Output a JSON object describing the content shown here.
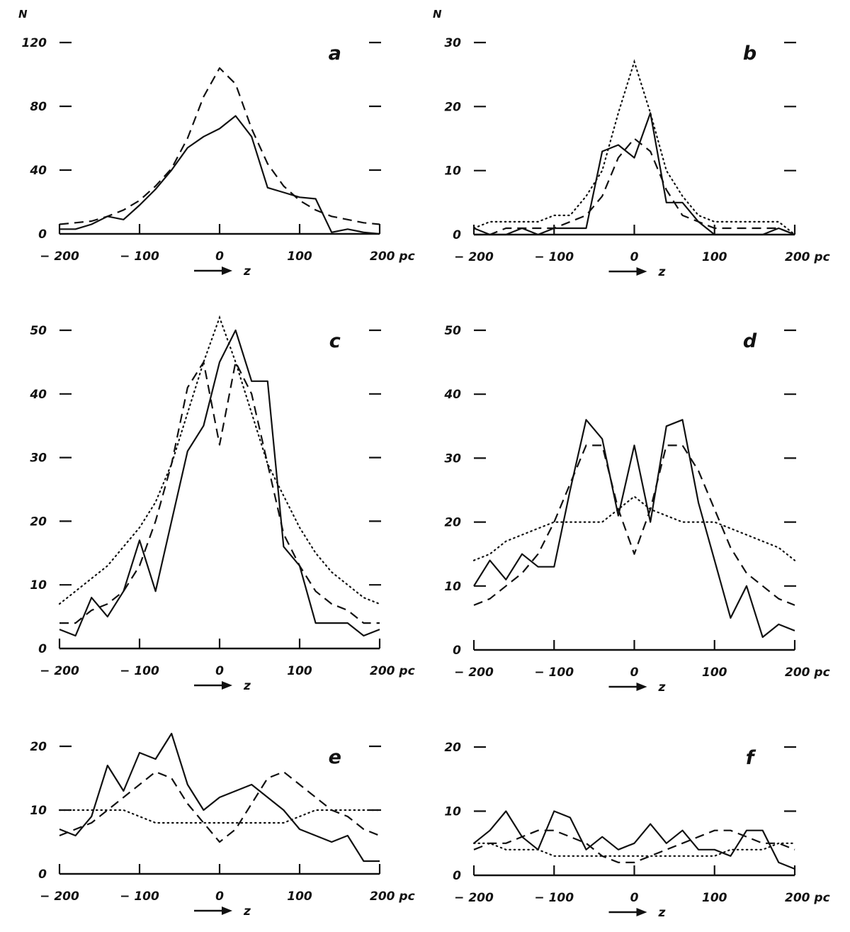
{
  "chart_data": [
    {
      "type": "line",
      "panel": "a",
      "ylabel": "N",
      "xlabel": "z",
      "x_unit": "pc",
      "xlim": [
        -200,
        200
      ],
      "ylim": [
        0,
        120
      ],
      "x_ticks": [
        -200,
        -100,
        0,
        100,
        200
      ],
      "x_tick_labels": [
        "− 200",
        "− 100",
        "0",
        "100",
        "200 pc"
      ],
      "y_ticks": [
        0,
        40,
        80,
        120
      ],
      "y_tick_labels": [
        "0",
        "40",
        "80",
        "120"
      ],
      "series": [
        {
          "style": "solid",
          "x": [
            -200,
            -180,
            -160,
            -140,
            -120,
            -100,
            -80,
            -60,
            -40,
            -20,
            0,
            20,
            40,
            60,
            80,
            100,
            120,
            140,
            160,
            180,
            200
          ],
          "y": [
            3,
            3,
            6,
            11,
            9,
            18,
            28,
            40,
            54,
            61,
            66,
            74,
            61,
            29,
            26,
            23,
            22,
            1,
            3,
            1,
            0
          ]
        },
        {
          "style": "dashed",
          "x": [
            -200,
            -180,
            -160,
            -140,
            -120,
            -100,
            -80,
            -60,
            -40,
            -20,
            0,
            20,
            40,
            60,
            80,
            100,
            120,
            140,
            160,
            180,
            200
          ],
          "y": [
            6,
            7,
            8,
            11,
            15,
            21,
            30,
            41,
            60,
            86,
            104,
            94,
            66,
            44,
            30,
            21,
            15,
            11,
            9,
            7,
            6
          ]
        }
      ]
    },
    {
      "type": "line",
      "panel": "b",
      "ylabel": "N",
      "xlabel": "z",
      "x_unit": "pc",
      "xlim": [
        -200,
        200
      ],
      "ylim": [
        0,
        30
      ],
      "x_ticks": [
        -200,
        -100,
        0,
        100,
        200
      ],
      "x_tick_labels": [
        "− 200",
        "− 100",
        "0",
        "100",
        "200 pc"
      ],
      "y_ticks": [
        0,
        10,
        20,
        30
      ],
      "y_tick_labels": [
        "0",
        "10",
        "20",
        "30"
      ],
      "series": [
        {
          "style": "solid",
          "x": [
            -200,
            -180,
            -160,
            -140,
            -120,
            -100,
            -80,
            -60,
            -40,
            -20,
            0,
            20,
            40,
            60,
            80,
            100,
            120,
            140,
            160,
            180,
            200
          ],
          "y": [
            1,
            0,
            0,
            1,
            0,
            1,
            1,
            1,
            13,
            14,
            12,
            19,
            5,
            5,
            2,
            0,
            0,
            0,
            0,
            1,
            0
          ]
        },
        {
          "style": "dashed",
          "x": [
            -200,
            -180,
            -160,
            -140,
            -120,
            -100,
            -80,
            -60,
            -40,
            -20,
            0,
            20,
            40,
            60,
            80,
            100,
            120,
            140,
            160,
            180,
            200
          ],
          "y": [
            0,
            0,
            1,
            1,
            1,
            1,
            2,
            3,
            6,
            12,
            15,
            13,
            7,
            3,
            2,
            1,
            1,
            1,
            1,
            1,
            0
          ]
        },
        {
          "style": "dotted",
          "x": [
            -200,
            -180,
            -160,
            -140,
            -120,
            -100,
            -80,
            -60,
            -40,
            -20,
            0,
            20,
            40,
            60,
            80,
            100,
            120,
            140,
            160,
            180,
            200
          ],
          "y": [
            1,
            2,
            2,
            2,
            2,
            3,
            3,
            6,
            10,
            19,
            27,
            19,
            10,
            6,
            3,
            2,
            2,
            2,
            2,
            2,
            0
          ]
        }
      ]
    },
    {
      "type": "line",
      "panel": "c",
      "xlabel": "z",
      "x_unit": "pc",
      "xlim": [
        -200,
        200
      ],
      "ylim": [
        0,
        50
      ],
      "x_ticks": [
        -200,
        -100,
        0,
        100,
        200
      ],
      "x_tick_labels": [
        "− 200",
        "− 100",
        "0",
        "100",
        "200 pc"
      ],
      "y_ticks": [
        0,
        10,
        20,
        30,
        40,
        50
      ],
      "y_tick_labels": [
        "0",
        "10",
        "20",
        "30",
        "40",
        "50"
      ],
      "series": [
        {
          "style": "solid",
          "x": [
            -200,
            -180,
            -160,
            -140,
            -120,
            -100,
            -80,
            -60,
            -40,
            -20,
            0,
            20,
            40,
            60,
            80,
            100,
            120,
            140,
            160,
            180,
            200
          ],
          "y": [
            3,
            2,
            8,
            5,
            9,
            17,
            9,
            20,
            31,
            35,
            45,
            50,
            42,
            42,
            16,
            13,
            4,
            4,
            4,
            2,
            3
          ]
        },
        {
          "style": "dashed",
          "x": [
            -200,
            -180,
            -160,
            -140,
            -120,
            -100,
            -80,
            -60,
            -40,
            -20,
            0,
            20,
            40,
            60,
            80,
            100,
            120,
            140,
            160,
            180,
            200
          ],
          "y": [
            4,
            4,
            6,
            7,
            9,
            13,
            20,
            29,
            41,
            45,
            32,
            45,
            40,
            29,
            18,
            13,
            9,
            7,
            6,
            4,
            4
          ]
        },
        {
          "style": "dotted",
          "x": [
            -200,
            -180,
            -160,
            -140,
            -120,
            -100,
            -80,
            -60,
            -40,
            -20,
            0,
            20,
            40,
            60,
            80,
            100,
            120,
            140,
            160,
            180,
            200
          ],
          "y": [
            7,
            9,
            11,
            13,
            16,
            19,
            23,
            29,
            37,
            45,
            52,
            45,
            37,
            29,
            24,
            19,
            15,
            12,
            10,
            8,
            7
          ]
        }
      ]
    },
    {
      "type": "line",
      "panel": "d",
      "xlabel": "z",
      "x_unit": "pc",
      "xlim": [
        -200,
        200
      ],
      "ylim": [
        0,
        50
      ],
      "x_ticks": [
        -200,
        -100,
        0,
        100,
        200
      ],
      "x_tick_labels": [
        "− 200",
        "− 100",
        "0",
        "100",
        "200 pc"
      ],
      "y_ticks": [
        0,
        10,
        20,
        30,
        40,
        50
      ],
      "y_tick_labels": [
        "0",
        "10",
        "20",
        "30",
        "40",
        "50"
      ],
      "series": [
        {
          "style": "solid",
          "x": [
            -200,
            -180,
            -160,
            -140,
            -120,
            -100,
            -80,
            -60,
            -40,
            -20,
            0,
            20,
            40,
            60,
            80,
            100,
            120,
            140,
            160,
            180,
            200
          ],
          "y": [
            10,
            14,
            11,
            15,
            13,
            13,
            25,
            36,
            33,
            21,
            32,
            20,
            35,
            36,
            23,
            14,
            5,
            10,
            2,
            4,
            3
          ]
        },
        {
          "style": "dashed",
          "x": [
            -200,
            -180,
            -160,
            -140,
            -120,
            -100,
            -80,
            -60,
            -40,
            -20,
            0,
            20,
            40,
            60,
            80,
            100,
            120,
            140,
            160,
            180,
            200
          ],
          "y": [
            7,
            8,
            10,
            12,
            15,
            20,
            26,
            32,
            32,
            22,
            15,
            22,
            32,
            32,
            28,
            22,
            16,
            12,
            10,
            8,
            7
          ]
        },
        {
          "style": "dotted",
          "x": [
            -200,
            -180,
            -160,
            -140,
            -120,
            -100,
            -80,
            -60,
            -40,
            -20,
            0,
            20,
            40,
            60,
            80,
            100,
            120,
            140,
            160,
            180,
            200
          ],
          "y": [
            14,
            15,
            17,
            18,
            19,
            20,
            20,
            20,
            20,
            22,
            24,
            22,
            21,
            20,
            20,
            20,
            19,
            18,
            17,
            16,
            14
          ]
        }
      ]
    },
    {
      "type": "line",
      "panel": "e",
      "xlabel": "z",
      "x_unit": "pc",
      "xlim": [
        -200,
        200
      ],
      "ylim": [
        0,
        20
      ],
      "x_ticks": [
        -200,
        -100,
        0,
        100,
        200
      ],
      "x_tick_labels": [
        "− 200",
        "− 100",
        "0",
        "100",
        "200 pc"
      ],
      "y_ticks": [
        0,
        10,
        20
      ],
      "y_tick_labels": [
        "0",
        "10",
        "20"
      ],
      "series": [
        {
          "style": "solid",
          "x": [
            -200,
            -180,
            -160,
            -140,
            -120,
            -100,
            -80,
            -60,
            -40,
            -20,
            0,
            20,
            40,
            60,
            80,
            100,
            120,
            140,
            160,
            180,
            200
          ],
          "y": [
            7,
            6,
            9,
            17,
            13,
            19,
            18,
            22,
            14,
            10,
            12,
            13,
            14,
            12,
            10,
            7,
            6,
            5,
            6,
            2,
            2
          ]
        },
        {
          "style": "dashed",
          "x": [
            -200,
            -180,
            -160,
            -140,
            -120,
            -100,
            -80,
            -60,
            -40,
            -20,
            0,
            20,
            40,
            60,
            80,
            100,
            120,
            140,
            160,
            180,
            200
          ],
          "y": [
            6,
            7,
            8,
            10,
            12,
            14,
            16,
            15,
            11,
            8,
            5,
            7,
            11,
            15,
            16,
            14,
            12,
            10,
            9,
            7,
            6
          ]
        },
        {
          "style": "dotted",
          "x": [
            -200,
            -180,
            -160,
            -140,
            -120,
            -100,
            -80,
            -60,
            -40,
            -20,
            0,
            20,
            40,
            60,
            80,
            100,
            120,
            140,
            160,
            180,
            200
          ],
          "y": [
            10,
            10,
            10,
            10,
            10,
            9,
            8,
            8,
            8,
            8,
            8,
            8,
            8,
            8,
            8,
            9,
            10,
            10,
            10,
            10,
            10
          ]
        }
      ]
    },
    {
      "type": "line",
      "panel": "f",
      "xlabel": "z",
      "x_unit": "pc",
      "xlim": [
        -200,
        200
      ],
      "ylim": [
        0,
        20
      ],
      "x_ticks": [
        -200,
        -100,
        0,
        100,
        200
      ],
      "x_tick_labels": [
        "− 200",
        "− 100",
        "0",
        "100",
        "200 pc"
      ],
      "y_ticks": [
        0,
        10,
        20
      ],
      "y_tick_labels": [
        "0",
        "10",
        "20"
      ],
      "series": [
        {
          "style": "solid",
          "x": [
            -200,
            -180,
            -160,
            -140,
            -120,
            -100,
            -80,
            -60,
            -40,
            -20,
            0,
            20,
            40,
            60,
            80,
            100,
            120,
            140,
            160,
            180,
            200
          ],
          "y": [
            5,
            7,
            10,
            6,
            4,
            10,
            9,
            4,
            6,
            4,
            5,
            8,
            5,
            7,
            4,
            4,
            3,
            7,
            7,
            2,
            1
          ]
        },
        {
          "style": "dashed",
          "x": [
            -200,
            -180,
            -160,
            -140,
            -120,
            -100,
            -80,
            -60,
            -40,
            -20,
            0,
            20,
            40,
            60,
            80,
            100,
            120,
            140,
            160,
            180,
            200
          ],
          "y": [
            4,
            5,
            5,
            6,
            7,
            7,
            6,
            5,
            3,
            2,
            2,
            3,
            4,
            5,
            6,
            7,
            7,
            6,
            5,
            5,
            4
          ]
        },
        {
          "style": "dotted",
          "x": [
            -200,
            -180,
            -160,
            -140,
            -120,
            -100,
            -80,
            -60,
            -40,
            -20,
            0,
            20,
            40,
            60,
            80,
            100,
            120,
            140,
            160,
            180,
            200
          ],
          "y": [
            5,
            5,
            4,
            4,
            4,
            3,
            3,
            3,
            3,
            3,
            3,
            3,
            3,
            3,
            3,
            3,
            4,
            4,
            4,
            5,
            5
          ]
        }
      ]
    }
  ]
}
